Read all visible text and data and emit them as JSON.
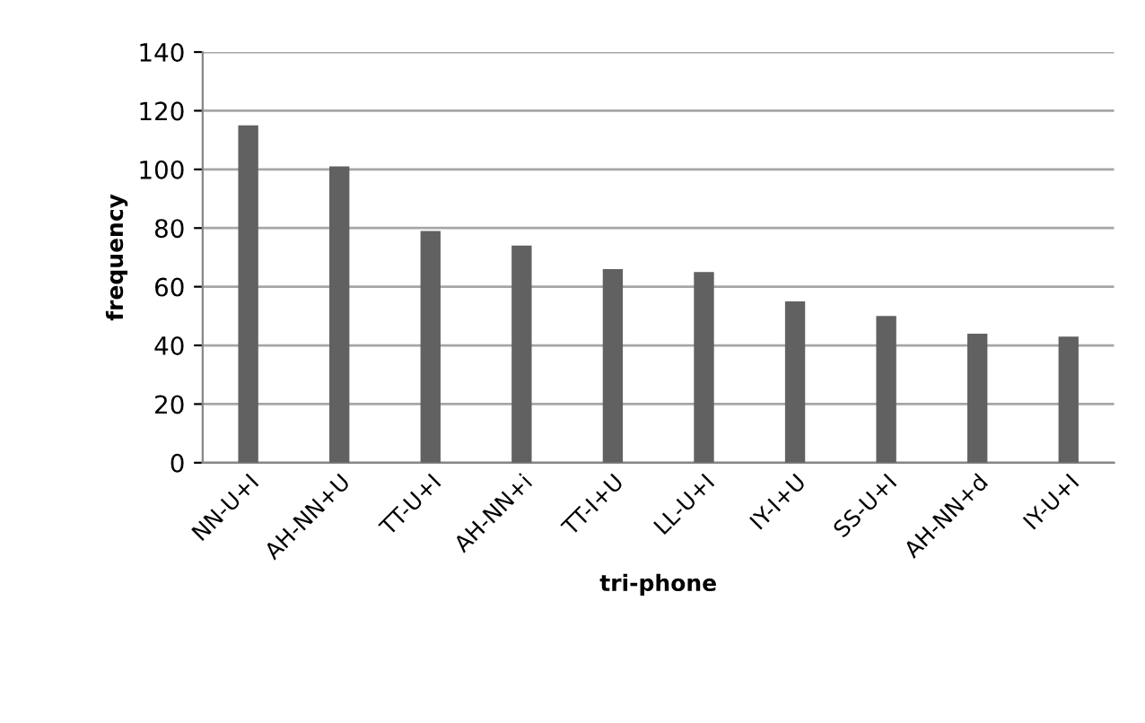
{
  "chart_data": {
    "type": "bar",
    "xlabel": "tri-phone",
    "ylabel": "frequency",
    "categories": [
      "NN-U+I",
      "AH-NN+U",
      "TT-U+I",
      "AH-NN+i",
      "TT-I+U",
      "LL-U+I",
      "IY-I+U",
      "SS-U+I",
      "AH-NN+d",
      "IY-U+I"
    ],
    "values": [
      115,
      101,
      79,
      74,
      66,
      65,
      55,
      50,
      44,
      43
    ],
    "color": "#616161",
    "ylim": [
      0,
      140
    ],
    "yticks": [
      0,
      20,
      40,
      60,
      80,
      100,
      120,
      140
    ],
    "grid": "y"
  }
}
